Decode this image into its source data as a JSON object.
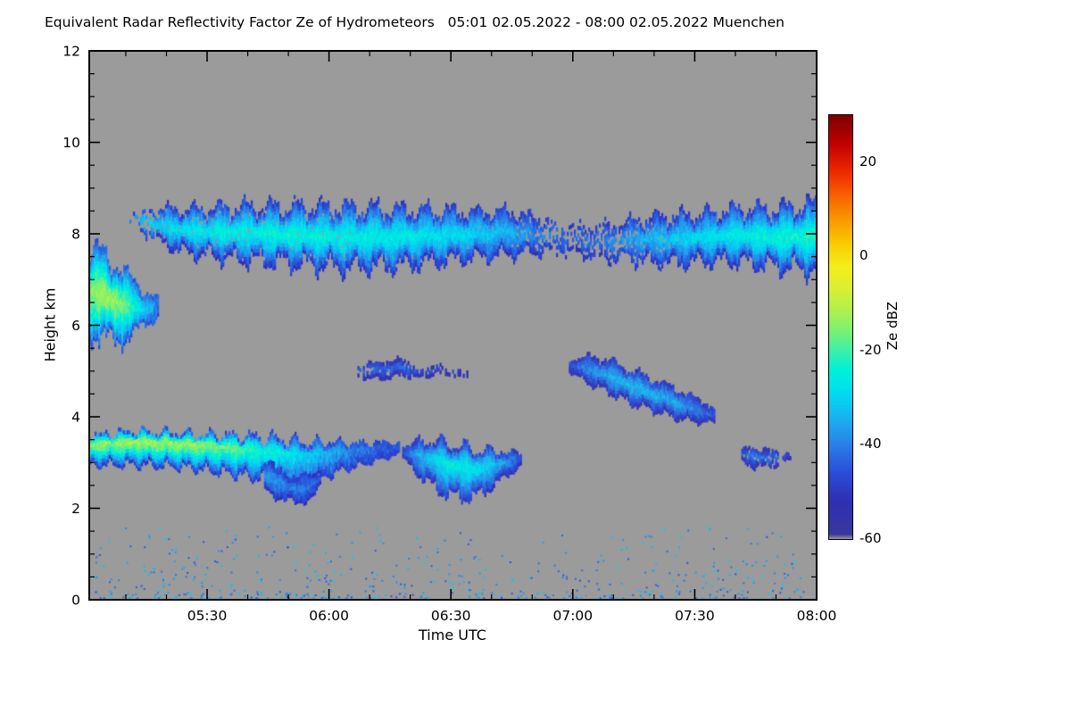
{
  "chart_data": {
    "type": "heatmap",
    "title": "Equivalent Radar Reflectivity Factor Ze of Hydrometeors   05:01 02.05.2022 - 08:00 02.05.2022 Muenchen",
    "xlabel": "Time UTC",
    "ylabel": "Height km",
    "location": "Muenchen",
    "x_axis": {
      "start_label": "05:01",
      "end_label": "08:00",
      "date": "02.05.2022",
      "range_minutes": [
        301,
        480
      ],
      "major_ticks": [
        {
          "minutes": 330,
          "label": "05:30"
        },
        {
          "minutes": 360,
          "label": "06:00"
        },
        {
          "minutes": 390,
          "label": "06:30"
        },
        {
          "minutes": 420,
          "label": "07:00"
        },
        {
          "minutes": 450,
          "label": "07:30"
        },
        {
          "minutes": 480,
          "label": "08:00"
        }
      ],
      "minor_tick_step_minutes": 10
    },
    "y_axis": {
      "lim": [
        0,
        12
      ],
      "major_ticks": [
        0,
        2,
        4,
        6,
        8,
        10,
        12
      ],
      "minor_tick_step": 0.5
    },
    "colorbar": {
      "label": "Ze dBZ",
      "min": -60,
      "max": 30,
      "ticks": [
        20,
        0,
        -20,
        -40,
        -60
      ]
    },
    "background_color": "#9b9b9b",
    "colormap": [
      [
        -60,
        "#9b9b9b"
      ],
      [
        -59,
        "#38389e"
      ],
      [
        -52,
        "#2f2fb4"
      ],
      [
        -46,
        "#2a4cd8"
      ],
      [
        -40,
        "#2a7fe8"
      ],
      [
        -34,
        "#18b4f0"
      ],
      [
        -29,
        "#00dcf0"
      ],
      [
        -24,
        "#00f0d8"
      ],
      [
        -20,
        "#3cf0a8"
      ],
      [
        -16,
        "#78f078"
      ],
      [
        -12,
        "#aaf050"
      ],
      [
        -7,
        "#d8f030"
      ],
      [
        -2,
        "#f4ee18"
      ],
      [
        3,
        "#f8c800"
      ],
      [
        8,
        "#f89600"
      ],
      [
        13,
        "#f86000"
      ],
      [
        18,
        "#ee2800"
      ],
      [
        24,
        "#c00000"
      ],
      [
        30,
        "#7e0000"
      ]
    ],
    "clouds": [
      {
        "name": "cirrus-layer-8km",
        "seed": 11,
        "raggedness": 0.5,
        "edge_dbz": -50,
        "core_bias": 0,
        "spine": [
          [
            310,
            8.3
          ],
          [
            316,
            8.2
          ],
          [
            324,
            8.05
          ],
          [
            336,
            8.0
          ],
          [
            350,
            7.95
          ],
          [
            364,
            7.9
          ],
          [
            378,
            7.9
          ],
          [
            392,
            7.95
          ],
          [
            404,
            8.0
          ],
          [
            412,
            7.95
          ],
          [
            420,
            7.85
          ],
          [
            428,
            7.8
          ],
          [
            436,
            7.85
          ],
          [
            444,
            7.85
          ],
          [
            452,
            7.9
          ],
          [
            460,
            7.95
          ],
          [
            468,
            7.9
          ],
          [
            480,
            7.9
          ]
        ],
        "half_thickness": [
          [
            310,
            0.12
          ],
          [
            316,
            0.3
          ],
          [
            324,
            0.45
          ],
          [
            336,
            0.55
          ],
          [
            350,
            0.6
          ],
          [
            364,
            0.65
          ],
          [
            378,
            0.6
          ],
          [
            392,
            0.5
          ],
          [
            404,
            0.45
          ],
          [
            412,
            0.35
          ],
          [
            420,
            0.3
          ],
          [
            428,
            0.35
          ],
          [
            436,
            0.45
          ],
          [
            444,
            0.5
          ],
          [
            452,
            0.5
          ],
          [
            460,
            0.55
          ],
          [
            468,
            0.6
          ],
          [
            480,
            0.7
          ]
        ],
        "core_dbz": [
          [
            310,
            -38
          ],
          [
            316,
            -30
          ],
          [
            324,
            -27
          ],
          [
            336,
            -25
          ],
          [
            350,
            -24
          ],
          [
            364,
            -25
          ],
          [
            378,
            -26
          ],
          [
            392,
            -29
          ],
          [
            404,
            -33
          ],
          [
            412,
            -40
          ],
          [
            420,
            -43
          ],
          [
            428,
            -40
          ],
          [
            436,
            -35
          ],
          [
            444,
            -31
          ],
          [
            452,
            -29
          ],
          [
            460,
            -26
          ],
          [
            468,
            -24
          ],
          [
            480,
            -22
          ]
        ],
        "coverage": [
          [
            310,
            0.12
          ],
          [
            315,
            0.5
          ],
          [
            320,
            0.95
          ],
          [
            404,
            1
          ],
          [
            410,
            0.8
          ],
          [
            415,
            0.35
          ],
          [
            420,
            0.4
          ],
          [
            428,
            0.55
          ],
          [
            436,
            0.75
          ],
          [
            444,
            0.95
          ],
          [
            452,
            1
          ],
          [
            480,
            1
          ]
        ]
      },
      {
        "name": "left-edge-cloud-6-7km",
        "seed": 23,
        "raggedness": 0.45,
        "edge_dbz": -45,
        "core_bias": 0,
        "spine": [
          [
            301,
            6.7
          ],
          [
            304,
            6.6
          ],
          [
            307,
            6.5
          ],
          [
            310,
            6.4
          ],
          [
            313,
            6.35
          ],
          [
            316,
            6.35
          ],
          [
            318,
            6.4
          ]
        ],
        "half_thickness": [
          [
            301,
            0.85
          ],
          [
            304,
            0.95
          ],
          [
            307,
            0.85
          ],
          [
            310,
            0.65
          ],
          [
            313,
            0.45
          ],
          [
            316,
            0.3
          ],
          [
            318,
            0.15
          ]
        ],
        "core_dbz": [
          [
            301,
            -15
          ],
          [
            304,
            -12
          ],
          [
            307,
            -13
          ],
          [
            310,
            -18
          ],
          [
            313,
            -26
          ],
          [
            316,
            -34
          ],
          [
            318,
            -42
          ]
        ]
      },
      {
        "name": "thin-patches-5km",
        "seed": 31,
        "raggedness": 0.5,
        "edge_dbz": -53,
        "core_bias": 0,
        "spine": [
          [
            367,
            4.95
          ],
          [
            372,
            5.0
          ],
          [
            377,
            5.05
          ],
          [
            382,
            4.95
          ],
          [
            388,
            5.0
          ],
          [
            394,
            4.9
          ]
        ],
        "half_thickness": [
          [
            367,
            0.1
          ],
          [
            372,
            0.18
          ],
          [
            377,
            0.16
          ],
          [
            382,
            0.1
          ],
          [
            388,
            0.08
          ],
          [
            394,
            0.06
          ]
        ],
        "core_dbz": [
          [
            367,
            -45
          ],
          [
            372,
            -42
          ],
          [
            377,
            -43
          ],
          [
            382,
            -46
          ],
          [
            388,
            -47
          ],
          [
            394,
            -48
          ]
        ],
        "coverage": [
          [
            367,
            0.6
          ],
          [
            372,
            0.9
          ],
          [
            377,
            0.85
          ],
          [
            382,
            0.6
          ],
          [
            388,
            0.5
          ],
          [
            394,
            0.35
          ]
        ]
      },
      {
        "name": "descending-band-5-to-4km",
        "seed": 41,
        "raggedness": 0.4,
        "edge_dbz": -52,
        "core_bias": 0,
        "spine": [
          [
            419,
            5.1
          ],
          [
            424,
            5.0
          ],
          [
            429,
            4.85
          ],
          [
            434,
            4.65
          ],
          [
            440,
            4.45
          ],
          [
            446,
            4.25
          ],
          [
            451,
            4.1
          ],
          [
            455,
            4.0
          ]
        ],
        "half_thickness": [
          [
            419,
            0.12
          ],
          [
            424,
            0.28
          ],
          [
            429,
            0.33
          ],
          [
            434,
            0.35
          ],
          [
            440,
            0.32
          ],
          [
            446,
            0.3
          ],
          [
            451,
            0.22
          ],
          [
            455,
            0.12
          ]
        ],
        "core_dbz": [
          [
            419,
            -45
          ],
          [
            424,
            -38
          ],
          [
            429,
            -34
          ],
          [
            434,
            -33
          ],
          [
            440,
            -34
          ],
          [
            446,
            -36
          ],
          [
            451,
            -41
          ],
          [
            455,
            -46
          ]
        ],
        "coverage": [
          [
            419,
            0.8
          ],
          [
            422,
            1
          ],
          [
            455,
            1
          ]
        ]
      },
      {
        "name": "low-layer-3km-west",
        "seed": 53,
        "raggedness": 0.45,
        "edge_dbz": -48,
        "core_bias": 0.4,
        "spine": [
          [
            301,
            3.25
          ],
          [
            312,
            3.3
          ],
          [
            324,
            3.25
          ],
          [
            336,
            3.15
          ],
          [
            346,
            3.05
          ],
          [
            354,
            2.95
          ],
          [
            362,
            3.1
          ],
          [
            370,
            3.2
          ],
          [
            377,
            3.3
          ]
        ],
        "half_thickness": [
          [
            301,
            0.3
          ],
          [
            312,
            0.35
          ],
          [
            324,
            0.35
          ],
          [
            336,
            0.4
          ],
          [
            346,
            0.45
          ],
          [
            354,
            0.45
          ],
          [
            362,
            0.3
          ],
          [
            370,
            0.2
          ],
          [
            377,
            0.12
          ]
        ],
        "core_dbz": [
          [
            301,
            -14
          ],
          [
            312,
            -12
          ],
          [
            324,
            -13
          ],
          [
            336,
            -17
          ],
          [
            346,
            -24
          ],
          [
            354,
            -30
          ],
          [
            362,
            -36
          ],
          [
            370,
            -42
          ],
          [
            377,
            -46
          ]
        ]
      },
      {
        "name": "virga-tail-2km",
        "seed": 59,
        "raggedness": 0.5,
        "edge_dbz": -50,
        "core_bias": 0,
        "spine": [
          [
            344,
            2.7
          ],
          [
            348,
            2.5
          ],
          [
            352,
            2.35
          ],
          [
            356,
            2.5
          ],
          [
            358,
            2.65
          ]
        ],
        "half_thickness": [
          [
            344,
            0.25
          ],
          [
            348,
            0.3
          ],
          [
            352,
            0.28
          ],
          [
            356,
            0.2
          ],
          [
            358,
            0.12
          ]
        ],
        "core_dbz": [
          [
            344,
            -36
          ],
          [
            348,
            -38
          ],
          [
            352,
            -40
          ],
          [
            356,
            -43
          ],
          [
            358,
            -46
          ]
        ]
      },
      {
        "name": "low-cloud-3km-center",
        "seed": 61,
        "raggedness": 0.45,
        "edge_dbz": -50,
        "core_bias": 0.2,
        "spine": [
          [
            378,
            3.2
          ],
          [
            384,
            3.0
          ],
          [
            390,
            2.8
          ],
          [
            396,
            2.75
          ],
          [
            402,
            2.9
          ],
          [
            407,
            3.05
          ]
        ],
        "half_thickness": [
          [
            378,
            0.12
          ],
          [
            384,
            0.45
          ],
          [
            390,
            0.55
          ],
          [
            396,
            0.5
          ],
          [
            402,
            0.3
          ],
          [
            407,
            0.12
          ]
        ],
        "core_dbz": [
          [
            378,
            -45
          ],
          [
            384,
            -31
          ],
          [
            390,
            -25
          ],
          [
            396,
            -27
          ],
          [
            402,
            -35
          ],
          [
            407,
            -45
          ]
        ]
      },
      {
        "name": "small-patch-3km-east",
        "seed": 71,
        "raggedness": 0.5,
        "edge_dbz": -53,
        "core_bias": 0,
        "spine": [
          [
            461,
            3.15
          ],
          [
            464,
            3.1
          ],
          [
            468,
            3.05
          ],
          [
            471,
            3.1
          ],
          [
            474,
            3.15
          ]
        ],
        "half_thickness": [
          [
            461,
            0.1
          ],
          [
            464,
            0.2
          ],
          [
            468,
            0.18
          ],
          [
            471,
            0.12
          ],
          [
            474,
            0.08
          ]
        ],
        "core_dbz": [
          [
            461,
            -45
          ],
          [
            464,
            -40
          ],
          [
            468,
            -42
          ],
          [
            471,
            -45
          ],
          [
            474,
            -48
          ]
        ],
        "coverage": [
          [
            461,
            0.5
          ],
          [
            464,
            0.9
          ],
          [
            468,
            0.85
          ],
          [
            471,
            0.6
          ],
          [
            474,
            0.4
          ]
        ]
      }
    ],
    "ground_clutter_speckles": {
      "seed": 97,
      "count": 520,
      "time_range_minutes": [
        301,
        480
      ],
      "height_range_km": [
        0.05,
        1.6
      ],
      "dbz_range": [
        -46,
        -30
      ],
      "low_bias_power": 2.4
    }
  }
}
